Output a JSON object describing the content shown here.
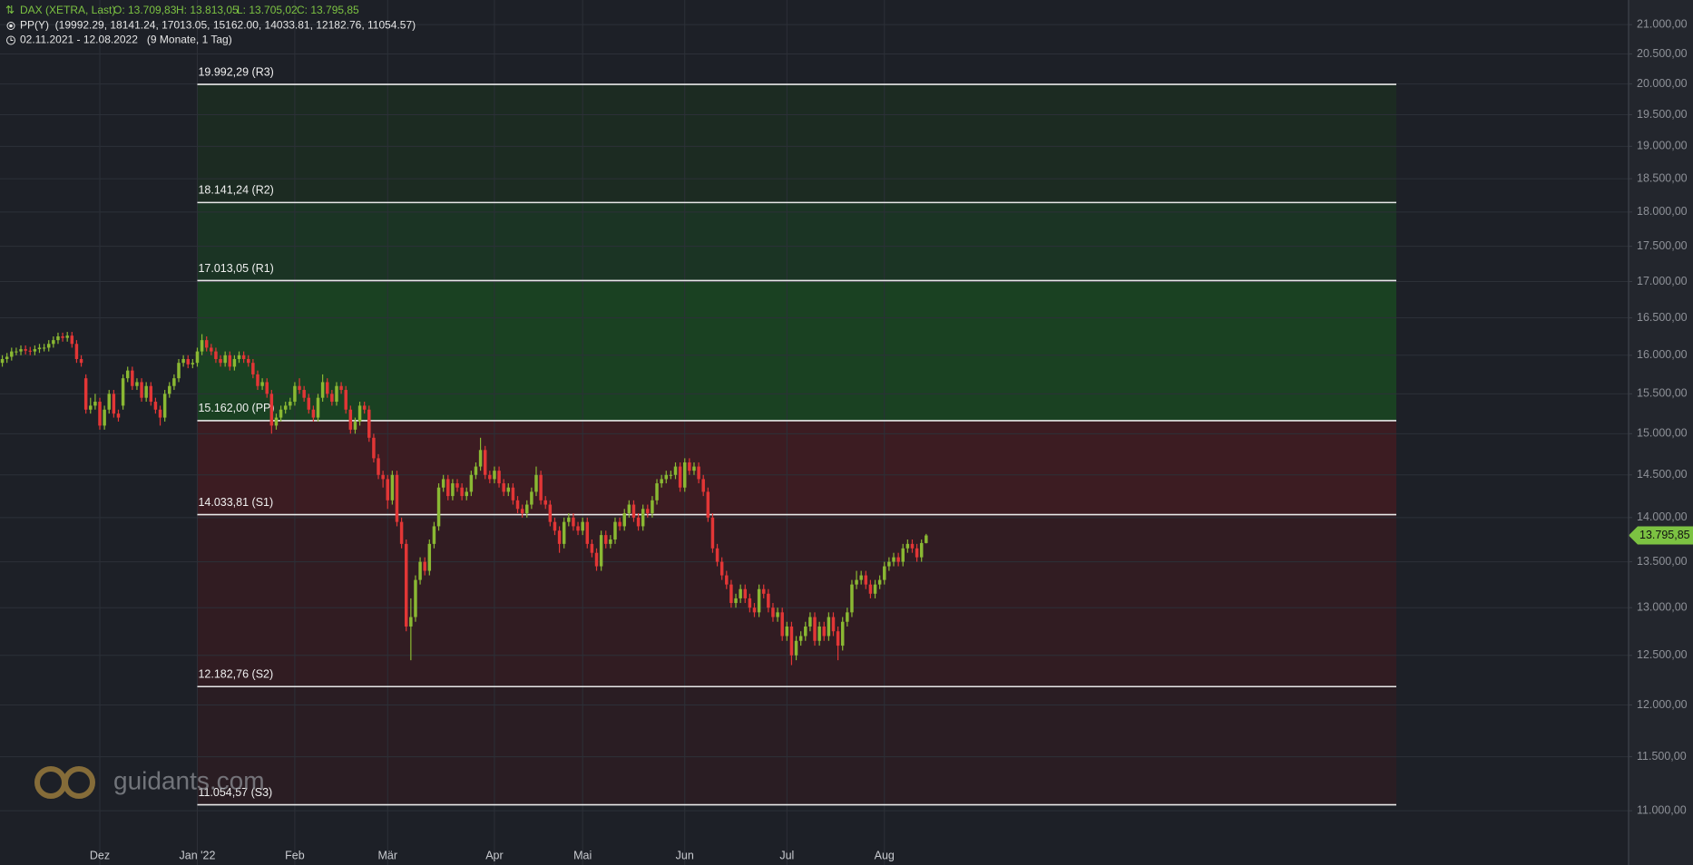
{
  "header": {
    "symbol": "DAX (XETRA, Last)",
    "ohlc": [
      "O: 13.709,83",
      "H: 13.813,05",
      "L: 13.705,02",
      "C: 13.795,85"
    ],
    "indicator": "PP(Y)  (19992.29, 18141.24, 17013.05, 15162.00, 14033.81, 12182.76, 11054.57)",
    "range": "02.11.2021 - 12.08.2022   (9 Monate, 1 Tag)"
  },
  "watermark": "guidants.com",
  "chart_data": {
    "type": "candlestick",
    "log": true,
    "grid": true,
    "up_color": "#8ab833",
    "down_color": "#e23636",
    "xlim": [
      -0.5,
      350.3
    ],
    "xticks": [
      {
        "value": 21,
        "label": "Dez"
      },
      {
        "value": 42,
        "label": "Jan '22"
      },
      {
        "value": 63,
        "label": "Feb"
      },
      {
        "value": 83,
        "label": "Mär"
      },
      {
        "value": 106,
        "label": "Apr"
      },
      {
        "value": 125,
        "label": "Mai"
      },
      {
        "value": 147,
        "label": "Jun"
      },
      {
        "value": 169,
        "label": "Jul"
      },
      {
        "value": 190,
        "label": "Aug"
      }
    ],
    "ylim": [
      10520,
      21430
    ],
    "yticks": [
      {
        "value": 11000,
        "label": "11.000,00"
      },
      {
        "value": 11500,
        "label": "11.500,00"
      },
      {
        "value": 12000,
        "label": "12.000,00"
      },
      {
        "value": 12500,
        "label": "12.500,00"
      },
      {
        "value": 13000,
        "label": "13.000,00"
      },
      {
        "value": 13500,
        "label": "13.500,00"
      },
      {
        "value": 14000,
        "label": "14.000,00"
      },
      {
        "value": 14500,
        "label": "14.500,00"
      },
      {
        "value": 15000,
        "label": "15.000,00"
      },
      {
        "value": 15500,
        "label": "15.500,00"
      },
      {
        "value": 16000,
        "label": "16.000,00"
      },
      {
        "value": 16500,
        "label": "16.500,00"
      },
      {
        "value": 17000,
        "label": "17.000,00"
      },
      {
        "value": 17500,
        "label": "17.500,00"
      },
      {
        "value": 18000,
        "label": "18.000,00"
      },
      {
        "value": 18500,
        "label": "18.500,00"
      },
      {
        "value": 19000,
        "label": "19.000,00"
      },
      {
        "value": 19500,
        "label": "19.500,00"
      },
      {
        "value": 20000,
        "label": "20.000,00"
      },
      {
        "value": 20500,
        "label": "20.500,00"
      },
      {
        "value": 21000,
        "label": "21.000,00"
      }
    ],
    "levels": {
      "values": [
        19992.29,
        18141.24,
        17013.05,
        15162.0,
        14033.81,
        12182.76,
        11054.57
      ],
      "value_labels": [
        "19.992,29 (R3)",
        "18.141,24 (R2)",
        "17.013,05 (R1)",
        "15.162,00 (PP)",
        "14.033,81 (S1)",
        "12.182,76 (S2)",
        "11.054,57 (S3)"
      ],
      "zone_colors": [
        "#1c2b22",
        "#1b3424",
        "#1a4122",
        "#3c1c22",
        "#311c22",
        "#2a1d23"
      ]
    },
    "last_price": {
      "value": 13795.85,
      "label": "13.795,85",
      "color": "#7cc242"
    },
    "ohlc": [
      [
        15900,
        16000,
        15850,
        15950
      ],
      [
        15950,
        16030,
        15900,
        15980
      ],
      [
        15980,
        16100,
        15930,
        16050
      ],
      [
        16050,
        16100,
        16000,
        16050
      ],
      [
        16050,
        16130,
        16000,
        16080
      ],
      [
        16080,
        16130,
        16010,
        16060
      ],
      [
        16060,
        16110,
        16000,
        16050
      ],
      [
        16050,
        16130,
        16000,
        16080
      ],
      [
        16080,
        16150,
        16030,
        16100
      ],
      [
        16100,
        16150,
        16050,
        16100
      ],
      [
        16100,
        16200,
        16050,
        16150
      ],
      [
        16150,
        16250,
        16100,
        16200
      ],
      [
        16200,
        16300,
        16150,
        16250
      ],
      [
        16250,
        16300,
        16180,
        16230
      ],
      [
        16230,
        16310,
        16180,
        16260
      ],
      [
        16260,
        16310,
        16100,
        16150
      ],
      [
        16150,
        16200,
        15900,
        15950
      ],
      [
        15950,
        16000,
        15850,
        15900
      ],
      [
        15700,
        15750,
        15250,
        15300
      ],
      [
        15300,
        15450,
        15250,
        15350
      ],
      [
        15350,
        15500,
        15300,
        15400
      ],
      [
        15400,
        15450,
        15050,
        15100
      ],
      [
        15100,
        15350,
        15050,
        15300
      ],
      [
        15300,
        15550,
        15250,
        15500
      ],
      [
        15500,
        15550,
        15200,
        15250
      ],
      [
        15250,
        15300,
        15150,
        15200
      ],
      [
        15350,
        15750,
        15300,
        15700
      ],
      [
        15700,
        15850,
        15650,
        15800
      ],
      [
        15800,
        15850,
        15550,
        15600
      ],
      [
        15600,
        15700,
        15550,
        15650
      ],
      [
        15650,
        15700,
        15400,
        15450
      ],
      [
        15450,
        15650,
        15400,
        15600
      ],
      [
        15600,
        15650,
        15350,
        15400
      ],
      [
        15400,
        15450,
        15250,
        15300
      ],
      [
        15300,
        15350,
        15100,
        15200
      ],
      [
        15200,
        15550,
        15150,
        15500
      ],
      [
        15500,
        15650,
        15450,
        15600
      ],
      [
        15600,
        15750,
        15550,
        15700
      ],
      [
        15700,
        15950,
        15650,
        15900
      ],
      [
        15900,
        16000,
        15850,
        15950
      ],
      [
        15950,
        16000,
        15830,
        15880
      ],
      [
        15880,
        15950,
        15830,
        15900
      ],
      [
        15900,
        16100,
        15850,
        16050
      ],
      [
        16050,
        16280,
        16000,
        16200
      ],
      [
        16200,
        16250,
        16050,
        16100
      ],
      [
        16100,
        16150,
        16000,
        16050
      ],
      [
        16050,
        16100,
        15900,
        15950
      ],
      [
        15950,
        16000,
        15850,
        15900
      ],
      [
        15900,
        16050,
        15850,
        16000
      ],
      [
        16000,
        16050,
        15800,
        15850
      ],
      [
        15850,
        16000,
        15800,
        15950
      ],
      [
        15950,
        16050,
        15900,
        16000
      ],
      [
        16000,
        16050,
        15900,
        15950
      ],
      [
        15950,
        16000,
        15850,
        15900
      ],
      [
        15900,
        15950,
        15700,
        15750
      ],
      [
        15750,
        15800,
        15550,
        15600
      ],
      [
        15600,
        15700,
        15550,
        15650
      ],
      [
        15650,
        15700,
        15450,
        15500
      ],
      [
        15500,
        15550,
        15000,
        15100
      ],
      [
        15100,
        15250,
        15050,
        15200
      ],
      [
        15200,
        15350,
        15150,
        15300
      ],
      [
        15300,
        15400,
        15250,
        15350
      ],
      [
        15350,
        15450,
        15300,
        15400
      ],
      [
        15400,
        15650,
        15350,
        15600
      ],
      [
        15600,
        15700,
        15500,
        15550
      ],
      [
        15550,
        15600,
        15400,
        15450
      ],
      [
        15450,
        15500,
        15250,
        15300
      ],
      [
        15300,
        15350,
        15150,
        15200
      ],
      [
        15200,
        15500,
        15150,
        15450
      ],
      [
        15450,
        15750,
        15400,
        15650
      ],
      [
        15650,
        15700,
        15450,
        15500
      ],
      [
        15500,
        15550,
        15350,
        15400
      ],
      [
        15400,
        15650,
        15350,
        15600
      ],
      [
        15600,
        15650,
        15500,
        15550
      ],
      [
        15550,
        15600,
        15250,
        15300
      ],
      [
        15300,
        15350,
        15000,
        15050
      ],
      [
        15050,
        15200,
        15000,
        15150
      ],
      [
        15150,
        15400,
        15100,
        15350
      ],
      [
        15350,
        15400,
        15250,
        15300
      ],
      [
        15300,
        15350,
        14900,
        14950
      ],
      [
        14950,
        15000,
        14650,
        14700
      ],
      [
        14700,
        14750,
        14450,
        14500
      ],
      [
        14500,
        14550,
        14350,
        14450
      ],
      [
        14450,
        14500,
        14100,
        14200
      ],
      [
        14200,
        14550,
        14150,
        14500
      ],
      [
        14500,
        14550,
        13900,
        13950
      ],
      [
        13950,
        14000,
        13650,
        13700
      ],
      [
        13700,
        13750,
        12750,
        12800
      ],
      [
        12800,
        13100,
        12450,
        12900
      ],
      [
        12900,
        13350,
        12850,
        13300
      ],
      [
        13300,
        13550,
        13250,
        13500
      ],
      [
        13500,
        13550,
        13350,
        13400
      ],
      [
        13400,
        13750,
        13350,
        13700
      ],
      [
        13700,
        13950,
        13650,
        13900
      ],
      [
        13900,
        14400,
        13850,
        14350
      ],
      [
        14350,
        14500,
        14300,
        14450
      ],
      [
        14450,
        14500,
        14200,
        14250
      ],
      [
        14250,
        14450,
        14200,
        14400
      ],
      [
        14400,
        14450,
        14300,
        14350
      ],
      [
        14350,
        14400,
        14200,
        14250
      ],
      [
        14250,
        14350,
        14200,
        14300
      ],
      [
        14300,
        14550,
        14250,
        14500
      ],
      [
        14500,
        14650,
        14450,
        14600
      ],
      [
        14600,
        14950,
        14550,
        14800
      ],
      [
        14800,
        14850,
        14450,
        14500
      ],
      [
        14500,
        14550,
        14400,
        14450
      ],
      [
        14450,
        14600,
        14400,
        14550
      ],
      [
        14550,
        14600,
        14350,
        14400
      ],
      [
        14400,
        14450,
        14250,
        14300
      ],
      [
        14300,
        14400,
        14250,
        14350
      ],
      [
        14350,
        14400,
        14150,
        14200
      ],
      [
        14200,
        14250,
        14050,
        14100
      ],
      [
        14100,
        14150,
        14000,
        14050
      ],
      [
        14050,
        14200,
        14000,
        14150
      ],
      [
        14150,
        14350,
        14100,
        14300
      ],
      [
        14300,
        14600,
        14250,
        14500
      ],
      [
        14500,
        14550,
        14150,
        14200
      ],
      [
        14200,
        14250,
        14100,
        14150
      ],
      [
        14150,
        14200,
        13900,
        13950
      ],
      [
        13950,
        14000,
        13800,
        13850
      ],
      [
        13850,
        13900,
        13600,
        13700
      ],
      [
        13700,
        14000,
        13650,
        13950
      ],
      [
        13950,
        14050,
        13900,
        14000
      ],
      [
        14000,
        14050,
        13850,
        13900
      ],
      [
        13900,
        13950,
        13800,
        13850
      ],
      [
        13850,
        14000,
        13800,
        13950
      ],
      [
        13950,
        14000,
        13650,
        13700
      ],
      [
        13700,
        13750,
        13550,
        13600
      ],
      [
        13600,
        13650,
        13400,
        13450
      ],
      [
        13450,
        13850,
        13400,
        13800
      ],
      [
        13800,
        13850,
        13650,
        13700
      ],
      [
        13700,
        13800,
        13650,
        13750
      ],
      [
        13750,
        14000,
        13700,
        13950
      ],
      [
        13950,
        14000,
        13850,
        13900
      ],
      [
        13900,
        14100,
        13850,
        14050
      ],
      [
        14050,
        14200,
        14000,
        14150
      ],
      [
        14150,
        14200,
        13950,
        14000
      ],
      [
        14000,
        14050,
        13850,
        13900
      ],
      [
        13900,
        14150,
        13850,
        14100
      ],
      [
        14100,
        14150,
        14000,
        14050
      ],
      [
        14050,
        14250,
        14000,
        14200
      ],
      [
        14200,
        14450,
        14150,
        14400
      ],
      [
        14400,
        14500,
        14350,
        14450
      ],
      [
        14450,
        14550,
        14400,
        14500
      ],
      [
        14500,
        14550,
        14450,
        14500
      ],
      [
        14500,
        14650,
        14450,
        14600
      ],
      [
        14600,
        14650,
        14300,
        14350
      ],
      [
        14350,
        14700,
        14300,
        14650
      ],
      [
        14650,
        14700,
        14500,
        14550
      ],
      [
        14550,
        14650,
        14500,
        14600
      ],
      [
        14600,
        14650,
        14400,
        14450
      ],
      [
        14450,
        14500,
        14250,
        14300
      ],
      [
        14300,
        14350,
        13950,
        14000
      ],
      [
        14000,
        14050,
        13600,
        13650
      ],
      [
        13650,
        13700,
        13450,
        13500
      ],
      [
        13500,
        13550,
        13300,
        13350
      ],
      [
        13350,
        13400,
        13200,
        13250
      ],
      [
        13250,
        13300,
        13000,
        13050
      ],
      [
        13050,
        13150,
        13000,
        13100
      ],
      [
        13100,
        13250,
        13050,
        13200
      ],
      [
        13200,
        13250,
        13050,
        13100
      ],
      [
        13100,
        13150,
        12950,
        13000
      ],
      [
        13000,
        13050,
        12900,
        12950
      ],
      [
        12950,
        13250,
        12900,
        13200
      ],
      [
        13200,
        13250,
        13100,
        13150
      ],
      [
        13150,
        13200,
        12950,
        13000
      ],
      [
        13000,
        13050,
        12850,
        12900
      ],
      [
        12900,
        13000,
        12850,
        12950
      ],
      [
        12950,
        13000,
        12650,
        12700
      ],
      [
        12700,
        12850,
        12650,
        12800
      ],
      [
        12800,
        12850,
        12400,
        12500
      ],
      [
        12500,
        12700,
        12450,
        12650
      ],
      [
        12650,
        12750,
        12600,
        12700
      ],
      [
        12700,
        12850,
        12650,
        12800
      ],
      [
        12800,
        12950,
        12750,
        12900
      ],
      [
        12900,
        12950,
        12600,
        12650
      ],
      [
        12650,
        12850,
        12600,
        12800
      ],
      [
        12800,
        12850,
        12650,
        12700
      ],
      [
        12700,
        12950,
        12650,
        12900
      ],
      [
        12900,
        12950,
        12700,
        12750
      ],
      [
        12750,
        12800,
        12450,
        12600
      ],
      [
        12600,
        12900,
        12550,
        12850
      ],
      [
        12850,
        13000,
        12800,
        12950
      ],
      [
        12950,
        13300,
        12900,
        13250
      ],
      [
        13250,
        13400,
        13200,
        13300
      ],
      [
        13300,
        13400,
        13250,
        13350
      ],
      [
        13350,
        13400,
        13200,
        13250
      ],
      [
        13250,
        13300,
        13100,
        13150
      ],
      [
        13150,
        13300,
        13100,
        13250
      ],
      [
        13250,
        13350,
        13200,
        13300
      ],
      [
        13300,
        13500,
        13250,
        13450
      ],
      [
        13450,
        13550,
        13400,
        13500
      ],
      [
        13500,
        13600,
        13450,
        13550
      ],
      [
        13550,
        13600,
        13450,
        13500
      ],
      [
        13500,
        13700,
        13450,
        13650
      ],
      [
        13650,
        13750,
        13600,
        13700
      ],
      [
        13700,
        13750,
        13600,
        13650
      ],
      [
        13650,
        13700,
        13500,
        13550
      ],
      [
        13550,
        13750,
        13500,
        13710
      ],
      [
        13709.83,
        13813.05,
        13705.02,
        13795.85
      ]
    ]
  }
}
